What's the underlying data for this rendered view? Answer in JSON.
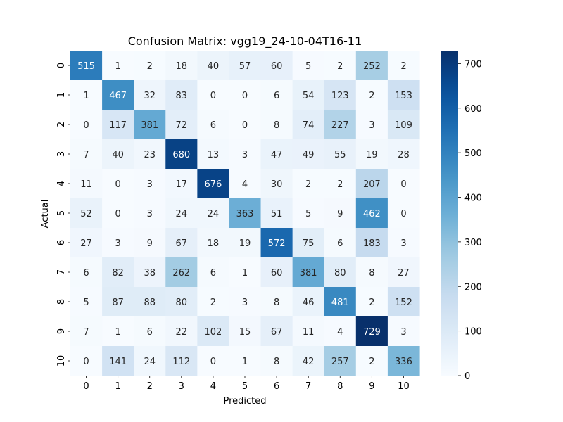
{
  "chart_data": {
    "type": "heatmap",
    "title": "Confusion Matrix: vgg19_24-10-04T16-11",
    "xlabel": "Predicted",
    "ylabel": "Actual",
    "x_categories": [
      "0",
      "1",
      "2",
      "3",
      "4",
      "5",
      "6",
      "7",
      "8",
      "9",
      "10"
    ],
    "y_categories": [
      "0",
      "1",
      "2",
      "3",
      "4",
      "5",
      "6",
      "7",
      "8",
      "9",
      "10"
    ],
    "values": [
      [
        515,
        1,
        2,
        18,
        40,
        57,
        60,
        5,
        2,
        252,
        2
      ],
      [
        1,
        467,
        32,
        83,
        0,
        0,
        6,
        54,
        123,
        2,
        153
      ],
      [
        0,
        117,
        381,
        72,
        6,
        0,
        8,
        74,
        227,
        3,
        109
      ],
      [
        7,
        40,
        23,
        680,
        13,
        3,
        47,
        49,
        55,
        19,
        28
      ],
      [
        11,
        0,
        3,
        17,
        676,
        4,
        30,
        2,
        2,
        207,
        0
      ],
      [
        52,
        0,
        3,
        24,
        24,
        363,
        51,
        5,
        9,
        462,
        0
      ],
      [
        27,
        3,
        9,
        67,
        18,
        19,
        572,
        75,
        6,
        183,
        3
      ],
      [
        6,
        82,
        38,
        262,
        6,
        1,
        60,
        381,
        80,
        8,
        27
      ],
      [
        5,
        87,
        88,
        80,
        2,
        3,
        8,
        46,
        481,
        2,
        152
      ],
      [
        7,
        1,
        6,
        22,
        102,
        15,
        67,
        11,
        4,
        729,
        3
      ],
      [
        0,
        141,
        24,
        112,
        0,
        1,
        8,
        42,
        257,
        2,
        336
      ]
    ],
    "colormap": "Blues",
    "vmin": 0,
    "vmax": 729,
    "colorbar_ticks": [
      0,
      100,
      200,
      300,
      400,
      500,
      600,
      700
    ],
    "grid": false,
    "legend": "colorbar-right"
  }
}
